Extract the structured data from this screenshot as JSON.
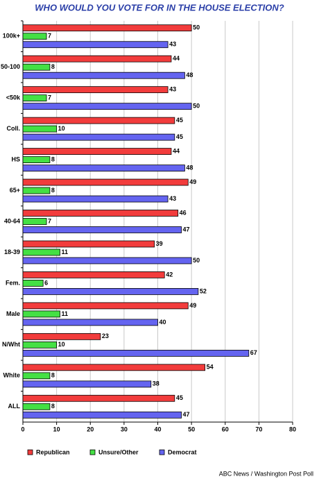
{
  "chart_data": {
    "type": "hbar",
    "title": "WHO WOULD YOU VOTE FOR IN THE HOUSE ELECTION?",
    "categories": [
      "100k+",
      "50-100",
      "<50k",
      "Coll.",
      "HS",
      "65+",
      "40-64",
      "18-39",
      "Fem.",
      "Male",
      "N/Wht",
      "White",
      "ALL"
    ],
    "series": [
      {
        "name": "Republican",
        "color": "#f23c3c",
        "values": [
          50,
          44,
          43,
          45,
          44,
          49,
          46,
          39,
          42,
          49,
          23,
          54,
          45
        ]
      },
      {
        "name": "Unsure/Other",
        "color": "#44e044",
        "values": [
          7,
          8,
          7,
          10,
          8,
          8,
          7,
          11,
          6,
          11,
          10,
          8,
          8
        ]
      },
      {
        "name": "Democrat",
        "color": "#6464f0",
        "values": [
          43,
          48,
          50,
          45,
          48,
          43,
          47,
          50,
          52,
          40,
          67,
          38,
          47
        ]
      }
    ],
    "xlim": [
      0,
      80
    ],
    "xticks": [
      0,
      10,
      20,
      30,
      40,
      50,
      60,
      70,
      80
    ],
    "grid": true,
    "legend": "bottom",
    "source": "ABC News / Washington Post Poll"
  }
}
